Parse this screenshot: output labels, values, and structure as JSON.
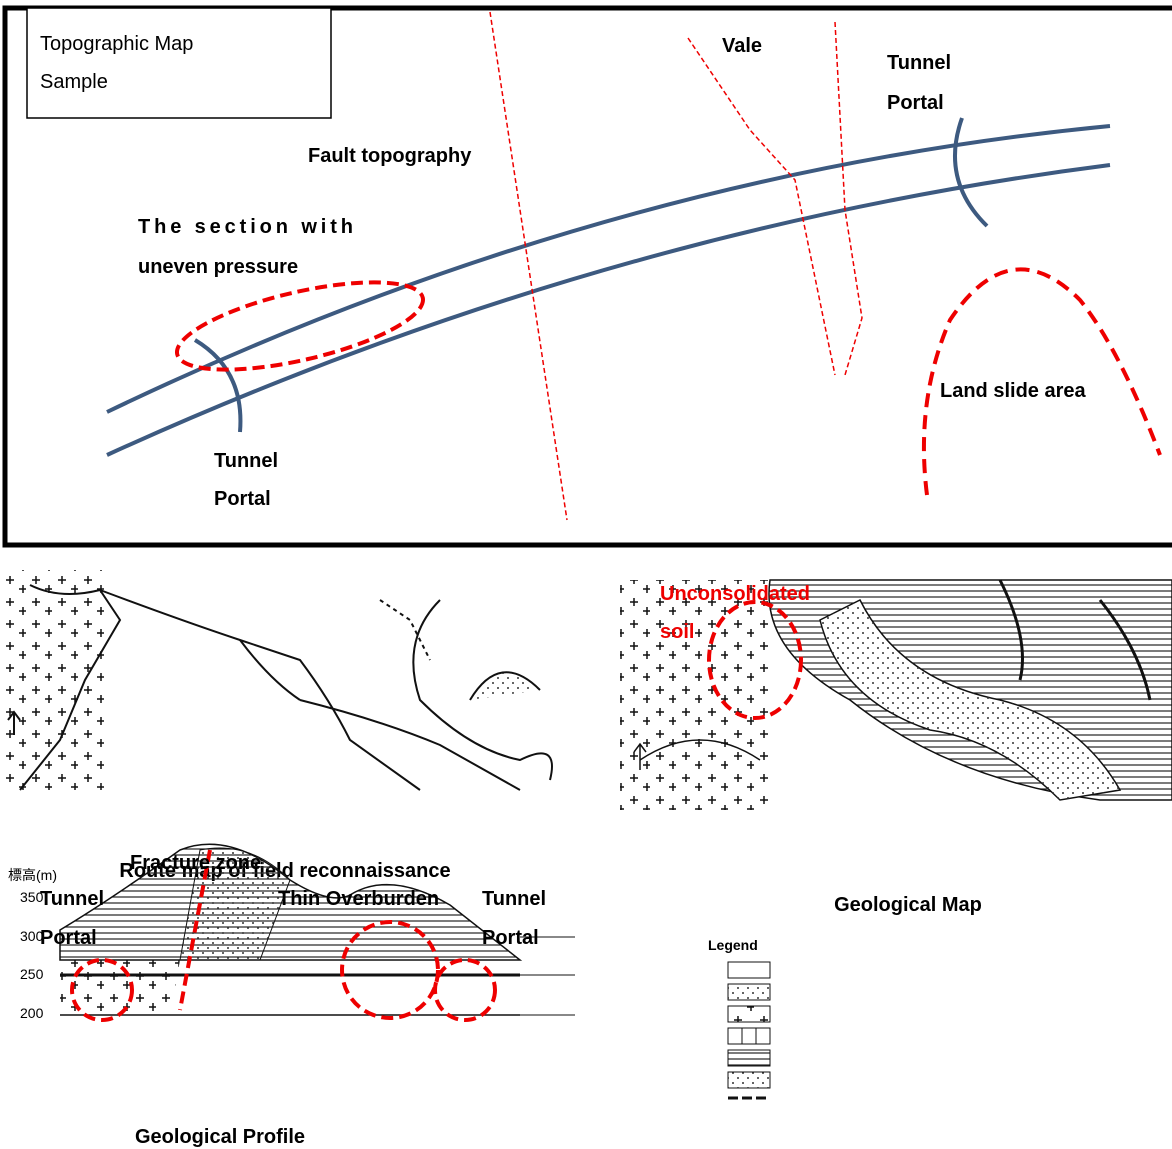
{
  "top_map": {
    "title": [
      "Topographic Map",
      "Sample"
    ],
    "fault_label": "Fault topography",
    "vale_label": "Vale",
    "portal_right": [
      "Tunnel",
      "Portal"
    ],
    "uneven_label": [
      "The section with",
      "uneven pressure"
    ],
    "portal_left": [
      "Tunnel",
      "Portal"
    ],
    "landslide_label": "Land slide area"
  },
  "route_map": {
    "caption": "Route map of field reconnaissance"
  },
  "geological_map": {
    "caption": "Geological Map",
    "soil_label": [
      "Unconsolidated",
      "soil"
    ]
  },
  "profile": {
    "caption": "Geological Profile",
    "axis_title": "標高(m)",
    "ticks": [
      "350",
      "300",
      "250",
      "200"
    ],
    "fracture_label": "Fracture zone",
    "portal_left": [
      "Tunnel",
      "Portal"
    ],
    "overburden_label": "Thin Overburden",
    "portal_right": [
      "Tunnel",
      "Portal"
    ]
  },
  "legend": {
    "title": "Legend"
  }
}
